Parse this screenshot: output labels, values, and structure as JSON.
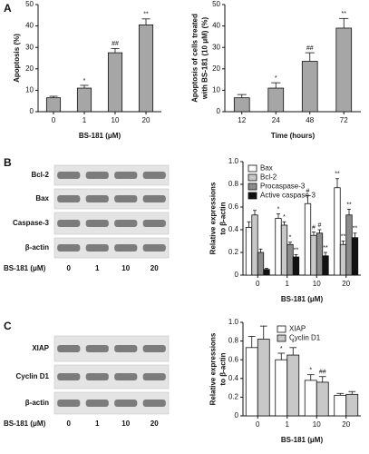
{
  "panel_labels": [
    "A",
    "B",
    "C"
  ],
  "blots": [
    {
      "rows": [
        "Bcl-2",
        "Bax",
        "Caspase-3",
        "β-actin"
      ],
      "lane_title": "BS-181 (μM)",
      "lanes": [
        "0",
        "1",
        "10",
        "20"
      ]
    },
    {
      "rows": [
        "XIAP",
        "Cyclin D1",
        "β-actin"
      ],
      "lane_title": "BS-181 (μM)",
      "lanes": [
        "0",
        "1",
        "10",
        "20"
      ]
    }
  ],
  "chart_data": [
    {
      "type": "bar",
      "ylabel": [
        "Apoptosis (%)"
      ],
      "xlabel": "BS-181 (μM)",
      "categories": [
        "0",
        "1",
        "10",
        "20"
      ],
      "series": [
        {
          "color": "#a6a6a6",
          "values": [
            6.5,
            11,
            27.5,
            40.5
          ],
          "errors": [
            0.7,
            1.3,
            2,
            2.8
          ],
          "annotations": [
            null,
            "*",
            "##",
            "**"
          ]
        }
      ],
      "ylim": [
        0,
        50
      ],
      "yticks": [
        0,
        10,
        20,
        30,
        40,
        50
      ]
    },
    {
      "type": "bar",
      "ylabel": [
        "Apoptosis of cells treated",
        "with BS-181 (10 μM) (%)"
      ],
      "xlabel": "Time (hours)",
      "categories": [
        "12",
        "24",
        "48",
        "72"
      ],
      "series": [
        {
          "color": "#a6a6a6",
          "values": [
            6.5,
            11,
            23.5,
            39
          ],
          "errors": [
            1.5,
            2.5,
            4,
            4.5
          ],
          "annotations": [
            null,
            "*",
            "##",
            "**"
          ]
        }
      ],
      "ylim": [
        0,
        50
      ],
      "yticks": [
        0,
        10,
        20,
        30,
        40,
        50
      ]
    },
    {
      "type": "bar",
      "ylabel": [
        "Relative expressions",
        "to β-actin"
      ],
      "xlabel": "BS-181 (μM)",
      "categories": [
        "0",
        "1",
        "10",
        "20"
      ],
      "legend": "upper left",
      "series": [
        {
          "name": "Bax",
          "color": "#ffffff",
          "values": [
            0.42,
            0.5,
            0.63,
            0.77
          ],
          "errors": [
            0.05,
            0.04,
            0.07,
            0.08
          ],
          "annotations": [
            null,
            "*",
            "#",
            "**"
          ]
        },
        {
          "name": "Bcl-2",
          "color": "#c8c8c8",
          "values": [
            0.53,
            0.44,
            0.35,
            0.27
          ],
          "errors": [
            0.04,
            0.03,
            0.03,
            0.03
          ],
          "annotations": [
            null,
            "*",
            "#",
            "**"
          ]
        },
        {
          "name": "Procaspase-3",
          "color": "#8c8c8c",
          "values": [
            0.2,
            0.27,
            0.37,
            0.53
          ],
          "errors": [
            0.03,
            0.02,
            0.03,
            0.05
          ],
          "annotations": [
            null,
            "*",
            "#",
            "**"
          ]
        },
        {
          "name": "Active caspase-3",
          "color": "#111111",
          "values": [
            0.05,
            0.16,
            0.17,
            0.33
          ],
          "errors": [
            0.01,
            0.02,
            0.03,
            0.04
          ],
          "annotations": [
            null,
            "**",
            "**",
            "**"
          ]
        }
      ],
      "ylim": [
        0,
        1
      ],
      "yticks": [
        0,
        0.2,
        0.4,
        0.6,
        0.8,
        {
          "value": 1,
          "label": "1.0"
        }
      ]
    },
    {
      "type": "bar",
      "ylabel": [
        "Relative expressions",
        "to β-actin"
      ],
      "xlabel": "BS-181 (μM)",
      "categories": [
        "0",
        "1",
        "10",
        "20"
      ],
      "legend": "upper right",
      "series": [
        {
          "name": "XIAP",
          "color": "#ffffff",
          "values": [
            0.73,
            0.6,
            0.38,
            0.22
          ],
          "errors": [
            0.12,
            0.07,
            0.06,
            0.02
          ],
          "annotations": [
            null,
            "*",
            "*",
            null
          ]
        },
        {
          "name": "Cyclin D1",
          "color": "#c8c8c8",
          "values": [
            0.82,
            0.65,
            0.36,
            0.23
          ],
          "errors": [
            0.14,
            0.08,
            0.06,
            0.03
          ],
          "annotations": [
            null,
            "*",
            "##",
            null
          ]
        }
      ],
      "ylim": [
        0,
        1
      ],
      "yticks": [
        0,
        0.2,
        0.4,
        0.6,
        0.8,
        {
          "value": 1,
          "label": "1.0"
        }
      ]
    }
  ]
}
